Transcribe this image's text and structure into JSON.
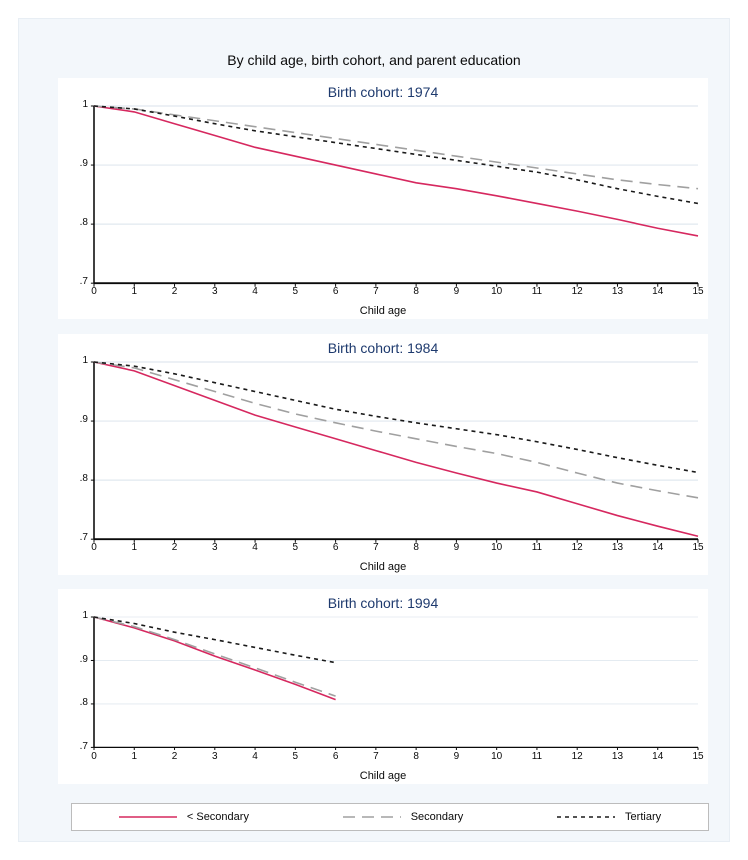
{
  "title": "By child age, birth cohort, and parent education",
  "xlabel": "Child age",
  "background_color": "#f3f7fb",
  "panel_bg": "#ffffff",
  "grid_color": "#e1e8ef",
  "axis_color": "#0a0a0a",
  "title_font_pt": 14,
  "panel_title_font_pt": 14,
  "tick_font_pt": 10,
  "xlabel_font_pt": 11,
  "xlim": [
    0,
    15
  ],
  "ylim": [
    0.7,
    1.0
  ],
  "xticks": [
    0,
    1,
    2,
    3,
    4,
    5,
    6,
    7,
    8,
    9,
    10,
    11,
    12,
    13,
    14,
    15
  ],
  "yticks": [
    0.7,
    0.8,
    0.9,
    1.0
  ],
  "ytick_labels": [
    ".7",
    ".8",
    ".9",
    "1"
  ],
  "panel_title_color": "#1e3a6e",
  "series_meta": {
    "lt_secondary": {
      "label": "< Secondary",
      "color": "#d6285f",
      "dash": "solid",
      "width": 1.6
    },
    "secondary": {
      "label": "Secondary",
      "color": "#a0a0a0",
      "dash": "12,7",
      "width": 1.6
    },
    "tertiary": {
      "label": "Tertiary",
      "color": "#1a1a1a",
      "dash": "4,4",
      "width": 1.6
    }
  },
  "panels": [
    {
      "title": "Birth cohort: 1974",
      "x": [
        0,
        1,
        2,
        3,
        4,
        5,
        6,
        7,
        8,
        9,
        10,
        11,
        12,
        13,
        14,
        15
      ],
      "series": {
        "lt_secondary": [
          1.0,
          0.99,
          0.97,
          0.95,
          0.93,
          0.915,
          0.9,
          0.885,
          0.87,
          0.86,
          0.848,
          0.835,
          0.822,
          0.808,
          0.793,
          0.78
        ],
        "secondary": [
          1.0,
          0.995,
          0.985,
          0.975,
          0.965,
          0.955,
          0.945,
          0.935,
          0.925,
          0.915,
          0.905,
          0.895,
          0.885,
          0.875,
          0.867,
          0.86
        ],
        "tertiary": [
          1.0,
          0.995,
          0.983,
          0.97,
          0.958,
          0.948,
          0.938,
          0.928,
          0.918,
          0.908,
          0.898,
          0.888,
          0.875,
          0.86,
          0.847,
          0.835
        ]
      }
    },
    {
      "title": "Birth cohort: 1984",
      "x": [
        0,
        1,
        2,
        3,
        4,
        5,
        6,
        7,
        8,
        9,
        10,
        11,
        12,
        13,
        14,
        15
      ],
      "series": {
        "lt_secondary": [
          1.0,
          0.985,
          0.96,
          0.935,
          0.91,
          0.89,
          0.87,
          0.85,
          0.83,
          0.812,
          0.795,
          0.78,
          0.76,
          0.74,
          0.722,
          0.705
        ],
        "secondary": [
          1.0,
          0.99,
          0.97,
          0.95,
          0.93,
          0.912,
          0.897,
          0.883,
          0.87,
          0.857,
          0.845,
          0.83,
          0.812,
          0.795,
          0.782,
          0.77
        ],
        "tertiary": [
          1.0,
          0.993,
          0.98,
          0.965,
          0.95,
          0.935,
          0.92,
          0.908,
          0.897,
          0.887,
          0.877,
          0.865,
          0.852,
          0.838,
          0.825,
          0.813
        ]
      }
    },
    {
      "title": "Birth cohort: 1994",
      "x": [
        0,
        1,
        2,
        3,
        4,
        5,
        6
      ],
      "series": {
        "lt_secondary": [
          1.0,
          0.975,
          0.945,
          0.91,
          0.878,
          0.845,
          0.81
        ],
        "secondary": [
          1.0,
          0.978,
          0.948,
          0.915,
          0.883,
          0.85,
          0.818
        ],
        "tertiary": [
          1.0,
          0.985,
          0.965,
          0.948,
          0.93,
          0.912,
          0.895
        ]
      }
    }
  ],
  "legend_order": [
    "lt_secondary",
    "secondary",
    "tertiary"
  ]
}
